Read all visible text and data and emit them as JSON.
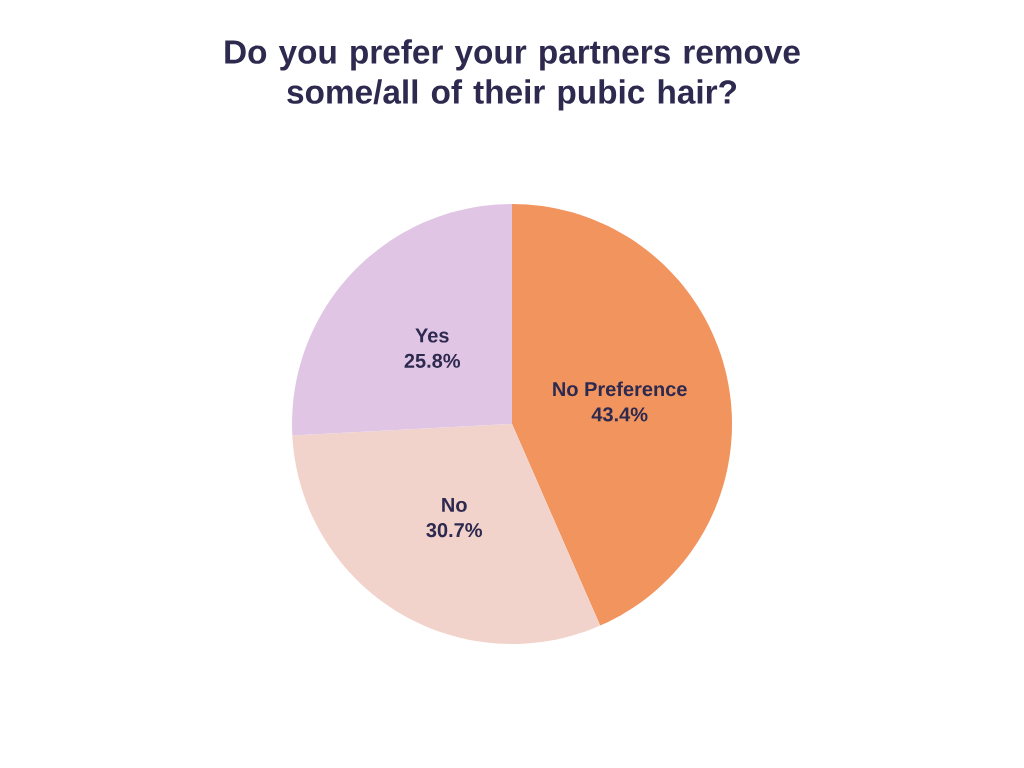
{
  "chart_data": {
    "type": "pie",
    "title": "Do you prefer your partners remove some/all of their pubic hair?",
    "categories": [
      "No Preference",
      "No",
      "Yes"
    ],
    "values": [
      43.4,
      30.7,
      25.8
    ],
    "value_labels": [
      "43.4%",
      "30.7%",
      "25.8%"
    ],
    "colors": [
      "#f2945e",
      "#f1d3cb",
      "#e0c6e4"
    ]
  }
}
